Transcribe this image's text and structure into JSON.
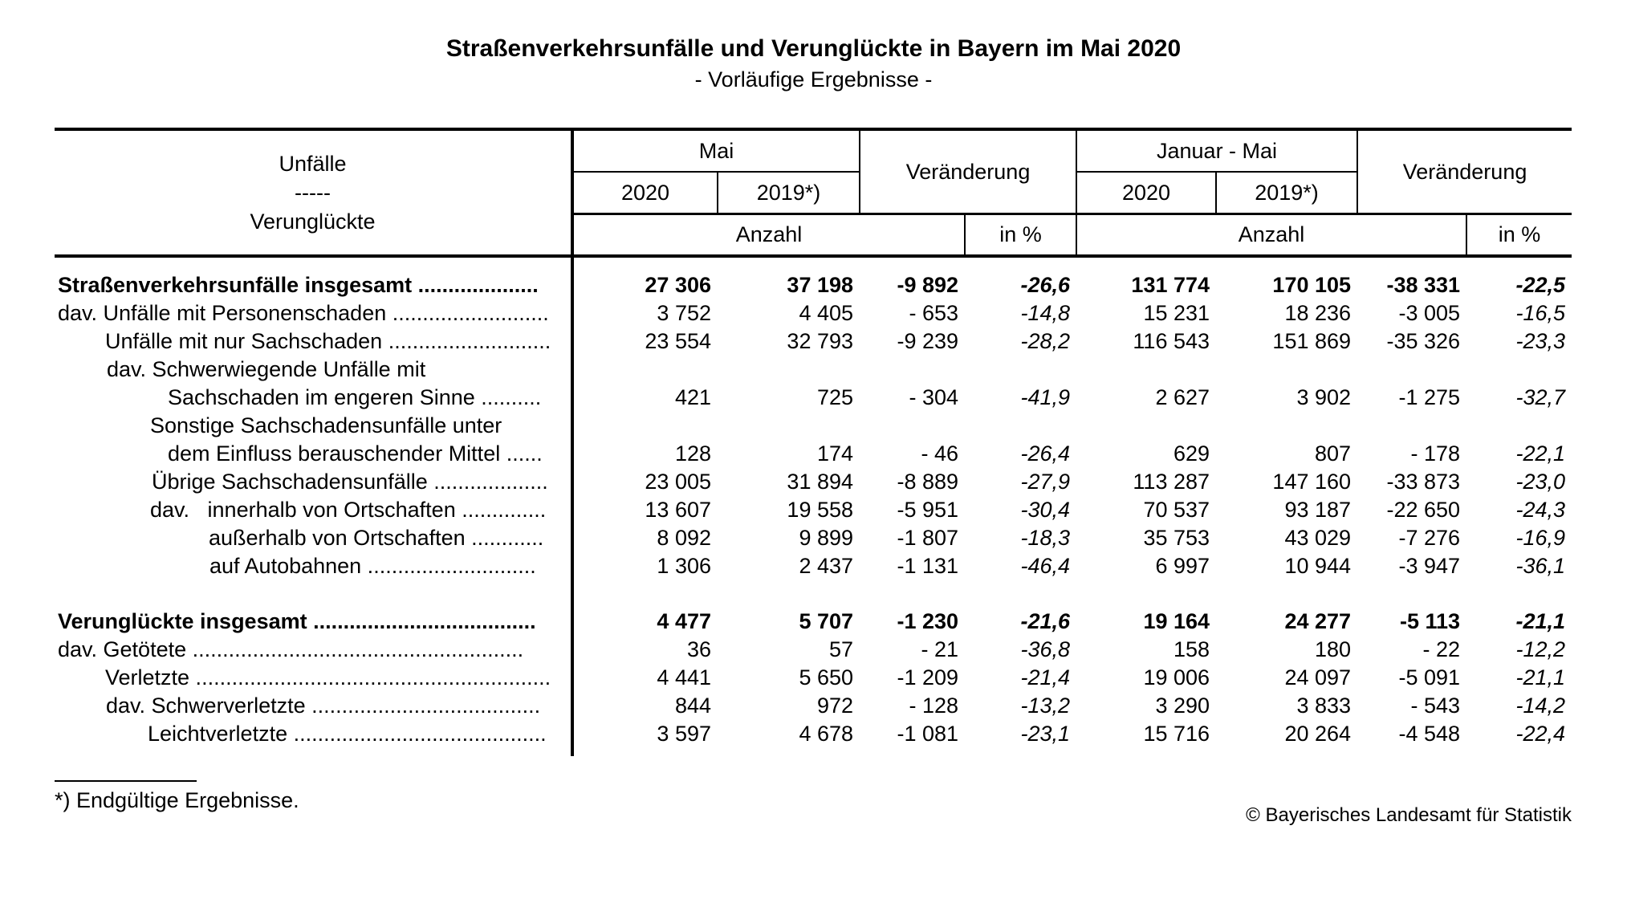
{
  "title": "Straßenverkehrsunfälle und Verunglückte in Bayern im Mai 2020",
  "subtitle": "- Vorläufige Ergebnisse -",
  "table": {
    "corner": {
      "line1": "Unfälle",
      "line2": "-----",
      "line3": "Verunglückte"
    },
    "groups": {
      "mai": "Mai",
      "change_mai": "Veränderung",
      "jan_mai": "Januar - Mai",
      "change_jan_mai": "Veränderung"
    },
    "years": {
      "mai_2020": "2020",
      "mai_2019": "2019*)",
      "jm_2020": "2020",
      "jm_2019": "2019*)"
    },
    "units": {
      "anzahl_mai": "Anzahl",
      "pct_mai": "in %",
      "anzahl_jm": "Anzahl",
      "pct_jm": "in %"
    },
    "rows": [
      {
        "label": "Straßenverkehrsunfälle insgesamt ....................",
        "indent": 0,
        "bold": true,
        "values": [
          "27 306",
          "37 198",
          "-9 892",
          "-26,6",
          "131 774",
          "170 105",
          "-38 331",
          "-22,5"
        ]
      },
      {
        "label": "dav. Unfälle mit Personenschaden ..........................",
        "indent": 0,
        "bold": false,
        "values": [
          "3 752",
          "4 405",
          "- 653",
          "-14,8",
          "15 231",
          "18 236",
          "-3 005",
          "-16,5"
        ]
      },
      {
        "label": "Unfälle mit nur Sachschaden ...........................",
        "indent": 59,
        "bold": false,
        "values": [
          "23 554",
          "32 793",
          "-9 239",
          "-28,2",
          "116 543",
          "151 869",
          "-35 326",
          "-23,3"
        ]
      },
      {
        "label": "dav. Schwerwiegende Unfälle mit",
        "indent": 61,
        "bold": false,
        "values": [
          "",
          "",
          "",
          "",
          "",
          "",
          "",
          ""
        ]
      },
      {
        "label": "Sachschaden im engeren Sinne ..........",
        "indent": 137,
        "bold": false,
        "values": [
          "421",
          "725",
          "- 304",
          "-41,9",
          "2 627",
          "3 902",
          "-1 275",
          "-32,7"
        ]
      },
      {
        "label": "Sonstige Sachschadensunfälle unter",
        "indent": 115,
        "bold": false,
        "values": [
          "",
          "",
          "",
          "",
          "",
          "",
          "",
          ""
        ]
      },
      {
        "label": "dem Einfluss berauschender Mittel ......",
        "indent": 137,
        "bold": false,
        "values": [
          "128",
          "174",
          "- 46",
          "-26,4",
          "629",
          "807",
          "- 178",
          "-22,1"
        ]
      },
      {
        "label": "Übrige Sachschadensunfälle ...................",
        "indent": 117,
        "bold": false,
        "values": [
          "23 005",
          "31 894",
          "-8 889",
          "-27,9",
          "113 287",
          "147 160",
          "-33 873",
          "-23,0"
        ]
      },
      {
        "label": "dav.   innerhalb von Ortschaften ..............",
        "indent": 115,
        "bold": false,
        "values": [
          "13 607",
          "19 558",
          "-5 951",
          "-30,4",
          "70 537",
          "93 187",
          "-22 650",
          "-24,3"
        ]
      },
      {
        "label": "außerhalb von Ortschaften ............",
        "indent": 188,
        "bold": false,
        "values": [
          "8 092",
          "9 899",
          "-1 807",
          "-18,3",
          "35 753",
          "43 029",
          "-7 276",
          "-16,9"
        ]
      },
      {
        "label": "auf Autobahnen ............................",
        "indent": 189,
        "bold": false,
        "values": [
          "1 306",
          "2 437",
          "-1 131",
          "-46,4",
          "6 997",
          "10 944",
          "-3 947",
          "-36,1"
        ]
      },
      {
        "spacer": true
      },
      {
        "label": "Verunglückte insgesamt .....................................",
        "indent": 0,
        "bold": true,
        "values": [
          "4 477",
          "5 707",
          "-1 230",
          "-21,6",
          "19 164",
          "24 277",
          "-5 113",
          "-21,1"
        ]
      },
      {
        "label": "dav. Getötete .......................................................",
        "indent": 0,
        "bold": false,
        "values": [
          "36",
          "57",
          "- 21",
          "-36,8",
          "158",
          "180",
          "- 22",
          "-12,2"
        ]
      },
      {
        "label": "Verletzte ...........................................................",
        "indent": 59,
        "bold": false,
        "values": [
          "4 441",
          "5 650",
          "-1 209",
          "-21,4",
          "19 006",
          "24 097",
          "-5 091",
          "-21,1"
        ]
      },
      {
        "label": "dav. Schwerverletzte ......................................",
        "indent": 60,
        "bold": false,
        "values": [
          "844",
          "972",
          "- 128",
          "-13,2",
          "3 290",
          "3 833",
          "- 543",
          "-14,2"
        ]
      },
      {
        "label": "Leichtverletzte ..........................................",
        "indent": 112,
        "bold": false,
        "values": [
          "3 597",
          "4 678",
          "-1 081",
          "-23,1",
          "15 716",
          "20 264",
          "-4 548",
          "-22,4"
        ]
      }
    ]
  },
  "footnote": "*) Endgültige Ergebnisse.",
  "copyright": "© Bayerisches Landesamt für Statistik"
}
